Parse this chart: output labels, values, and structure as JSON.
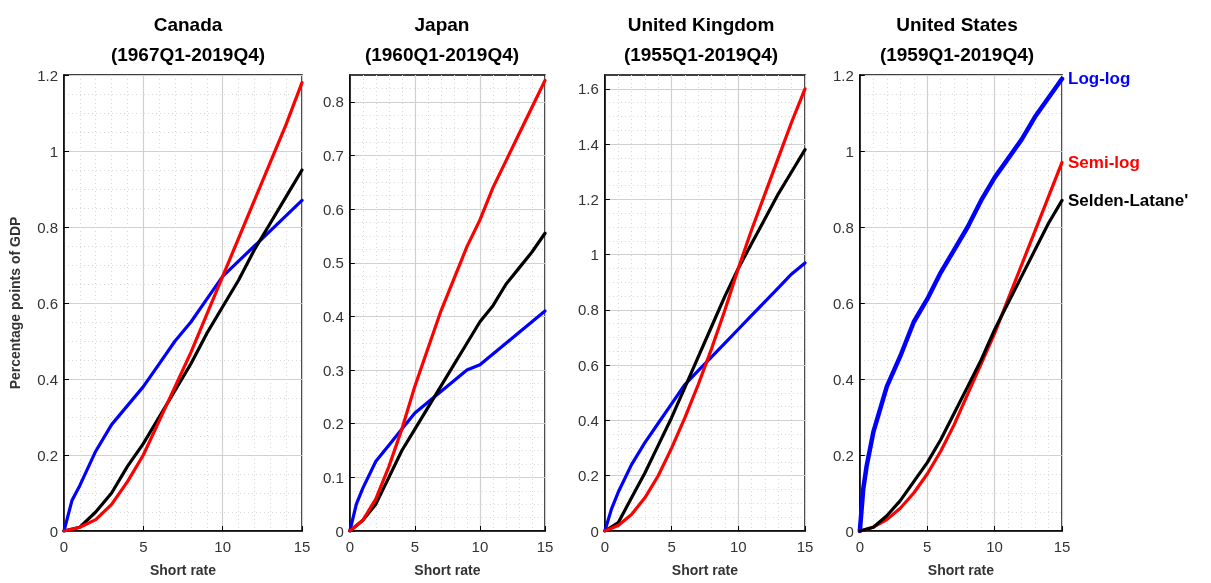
{
  "chart_data": [
    {
      "type": "line",
      "title": "Canada\n(1967Q1-2019Q4)",
      "xlabel": "Short rate",
      "ylabel": "Percentage points of GDP",
      "xlim": [
        0,
        15
      ],
      "xticks": [
        0,
        5,
        10,
        15
      ],
      "ylim": [
        0,
        1.2
      ],
      "yticks": [
        0,
        0.2,
        0.4,
        0.6,
        0.8,
        1,
        1.2
      ],
      "grid": true,
      "marker": "none",
      "x": [
        0,
        1,
        2,
        3,
        4,
        5,
        6,
        7,
        8,
        9,
        10,
        11,
        12,
        13,
        14,
        15
      ],
      "series": [
        {
          "color": "#0000ff",
          "x": [
            0,
            0.5,
            1,
            2,
            3,
            4,
            5,
            6,
            7,
            8,
            9,
            10,
            11,
            12,
            13,
            14,
            15
          ],
          "values": [
            0,
            0.08,
            0.12,
            0.21,
            0.28,
            0.33,
            0.38,
            0.44,
            0.5,
            0.55,
            0.61,
            0.67,
            0.71,
            0.75,
            0.79,
            0.83,
            0.87
          ]
        },
        {
          "color": "#000000",
          "values": [
            0,
            0.01,
            0.05,
            0.1,
            0.17,
            0.23,
            0.3,
            0.37,
            0.44,
            0.52,
            0.59,
            0.66,
            0.74,
            0.81,
            0.88,
            0.95
          ]
        },
        {
          "color": "#ff0000",
          "values": [
            0,
            0.01,
            0.03,
            0.07,
            0.13,
            0.2,
            0.29,
            0.38,
            0.47,
            0.57,
            0.67,
            0.77,
            0.87,
            0.97,
            1.07,
            1.18
          ]
        }
      ]
    },
    {
      "type": "line",
      "title": "Japan\n(1960Q1-2019Q4)",
      "xlabel": "Short rate",
      "xlim": [
        0,
        15
      ],
      "xticks": [
        0,
        5,
        10,
        15
      ],
      "ylim": [
        0,
        0.85
      ],
      "yticks": [
        0,
        0.1,
        0.2,
        0.3,
        0.4,
        0.5,
        0.6,
        0.7,
        0.8
      ],
      "grid": true,
      "marker": "none",
      "x": [
        0,
        1,
        2,
        3,
        4,
        5,
        6,
        7,
        8,
        9,
        10,
        11,
        12,
        13,
        14,
        15
      ],
      "series": [
        {
          "color": "#0000ff",
          "x": [
            0,
            0.5,
            1,
            2,
            3,
            4,
            5,
            6,
            7,
            8,
            9,
            10,
            11,
            12,
            13,
            14,
            15
          ],
          "values": [
            0,
            0.05,
            0.08,
            0.13,
            0.16,
            0.19,
            0.22,
            0.24,
            0.26,
            0.28,
            0.3,
            0.31,
            0.33,
            0.35,
            0.37,
            0.39,
            0.41
          ]
        },
        {
          "color": "#000000",
          "values": [
            0,
            0.02,
            0.05,
            0.1,
            0.15,
            0.19,
            0.23,
            0.27,
            0.31,
            0.35,
            0.39,
            0.42,
            0.46,
            0.49,
            0.52,
            0.555
          ]
        },
        {
          "color": "#ff0000",
          "values": [
            0,
            0.02,
            0.06,
            0.12,
            0.19,
            0.27,
            0.34,
            0.41,
            0.47,
            0.53,
            0.58,
            0.64,
            0.69,
            0.74,
            0.79,
            0.84
          ]
        }
      ]
    },
    {
      "type": "line",
      "title": "United Kingdom\n(1955Q1-2019Q4)",
      "xlabel": "Short rate",
      "xlim": [
        0,
        15
      ],
      "xticks": [
        0,
        5,
        10,
        15
      ],
      "ylim": [
        0,
        1.65
      ],
      "yticks": [
        0,
        0.2,
        0.4,
        0.6,
        0.8,
        1,
        1.2,
        1.4,
        1.6
      ],
      "grid": true,
      "marker": "none",
      "x": [
        0,
        1,
        2,
        3,
        4,
        5,
        6,
        7,
        8,
        9,
        10,
        11,
        12,
        13,
        14,
        15
      ],
      "series": [
        {
          "color": "#0000ff",
          "x": [
            0,
            0.5,
            1,
            2,
            3,
            4,
            5,
            6,
            7,
            8,
            9,
            10,
            11,
            12,
            13,
            14,
            15
          ],
          "values": [
            0,
            0.08,
            0.14,
            0.24,
            0.32,
            0.39,
            0.46,
            0.53,
            0.58,
            0.63,
            0.68,
            0.73,
            0.78,
            0.83,
            0.88,
            0.93,
            0.97
          ]
        },
        {
          "color": "#000000",
          "values": [
            0,
            0.03,
            0.12,
            0.21,
            0.31,
            0.41,
            0.52,
            0.63,
            0.74,
            0.85,
            0.95,
            1.04,
            1.13,
            1.22,
            1.3,
            1.38
          ]
        },
        {
          "color": "#ff0000",
          "values": [
            0,
            0.02,
            0.06,
            0.12,
            0.2,
            0.3,
            0.41,
            0.53,
            0.66,
            0.8,
            0.95,
            1.09,
            1.22,
            1.35,
            1.48,
            1.6
          ]
        }
      ]
    },
    {
      "type": "line",
      "title": "United States\n(1959Q1-2019Q4)",
      "xlabel": "Short rate",
      "xlim": [
        0,
        15
      ],
      "xticks": [
        0,
        5,
        10,
        15
      ],
      "ylim": [
        0,
        1.2
      ],
      "yticks": [
        0,
        0.2,
        0.4,
        0.6,
        0.8,
        1,
        1.2
      ],
      "grid": true,
      "marker": "none",
      "x": [
        0,
        1,
        2,
        3,
        4,
        5,
        6,
        7,
        8,
        9,
        10,
        11,
        12,
        13,
        14,
        15
      ],
      "series": [
        {
          "name": "Log-log",
          "color": "#0000ff",
          "x": [
            0,
            0.25,
            0.5,
            1,
            2,
            3,
            4,
            5,
            6,
            7,
            8,
            9,
            10,
            11,
            12,
            13,
            14,
            15
          ],
          "values": [
            0,
            0.11,
            0.17,
            0.26,
            0.38,
            0.46,
            0.55,
            0.61,
            0.68,
            0.74,
            0.8,
            0.87,
            0.93,
            0.98,
            1.03,
            1.09,
            1.14,
            1.19
          ]
        },
        {
          "name": "Semi-log",
          "color": "#ff0000",
          "values": [
            0,
            0.01,
            0.03,
            0.06,
            0.1,
            0.15,
            0.21,
            0.28,
            0.36,
            0.44,
            0.52,
            0.61,
            0.7,
            0.79,
            0.88,
            0.97
          ]
        },
        {
          "name": "Selden-Latane'",
          "color": "#000000",
          "values": [
            0,
            0.01,
            0.04,
            0.08,
            0.13,
            0.18,
            0.24,
            0.31,
            0.38,
            0.45,
            0.53,
            0.6,
            0.67,
            0.74,
            0.81,
            0.87
          ]
        }
      ]
    }
  ]
}
